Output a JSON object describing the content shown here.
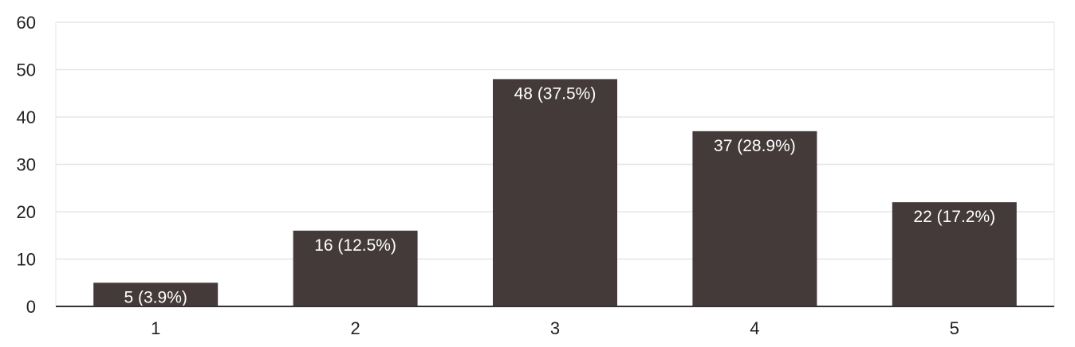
{
  "chart_data": {
    "type": "bar",
    "categories": [
      "1",
      "2",
      "3",
      "4",
      "5"
    ],
    "values": [
      5,
      16,
      48,
      37,
      22
    ],
    "data_labels": [
      "5 (3.9%)",
      "16 (12.5%)",
      "48 (37.5%)",
      "37 (28.9%)",
      "22 (17.2%)"
    ],
    "y_ticks": [
      "0",
      "10",
      "20",
      "30",
      "40",
      "50",
      "60"
    ],
    "ylim": [
      0,
      60
    ],
    "grid": true,
    "legend": "none",
    "bar_color": "#453a3a",
    "grid_color": "#e6e6e6",
    "axis_color": "#333333"
  }
}
